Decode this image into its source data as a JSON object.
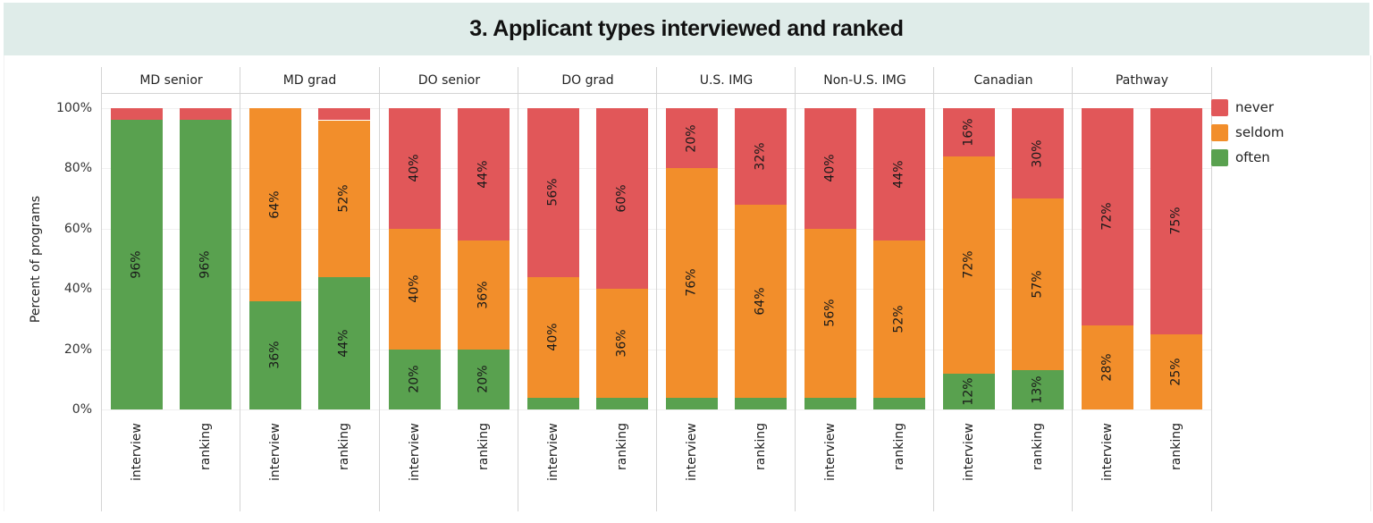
{
  "title": "3. Applicant types interviewed and ranked",
  "y_axis": {
    "label": "Percent of programs",
    "ticks": [
      "100%",
      "80%",
      "60%",
      "40%",
      "20%",
      "0%"
    ]
  },
  "legend": {
    "items": [
      {
        "label": "never",
        "color": "#e15759"
      },
      {
        "label": "seldom",
        "color": "#f28e2b"
      },
      {
        "label": "often",
        "color": "#59a14f"
      }
    ]
  },
  "panels": [
    {
      "name": "MD senior",
      "bars": [
        {
          "x": "interview",
          "often": 96,
          "seldom": 0,
          "never": 4,
          "labels": {
            "often": "96%",
            "seldom": "",
            "never": ""
          }
        },
        {
          "x": "ranking",
          "often": 96,
          "seldom": 0,
          "never": 4,
          "labels": {
            "often": "96%",
            "seldom": "",
            "never": ""
          }
        }
      ]
    },
    {
      "name": "MD grad",
      "bars": [
        {
          "x": "interview",
          "often": 36,
          "seldom": 64,
          "never": 0,
          "labels": {
            "often": "36%",
            "seldom": "64%",
            "never": ""
          }
        },
        {
          "x": "ranking",
          "often": 44,
          "seldom": 52,
          "never": 4,
          "labels": {
            "often": "44%",
            "seldom": "52%",
            "never": ""
          }
        }
      ]
    },
    {
      "name": "DO senior",
      "bars": [
        {
          "x": "interview",
          "often": 20,
          "seldom": 40,
          "never": 40,
          "labels": {
            "often": "20%",
            "seldom": "40%",
            "never": "40%"
          }
        },
        {
          "x": "ranking",
          "often": 20,
          "seldom": 36,
          "never": 44,
          "labels": {
            "often": "20%",
            "seldom": "36%",
            "never": "44%"
          }
        }
      ]
    },
    {
      "name": "DO grad",
      "bars": [
        {
          "x": "interview",
          "often": 4,
          "seldom": 40,
          "never": 56,
          "labels": {
            "often": "",
            "seldom": "40%",
            "never": "56%"
          }
        },
        {
          "x": "ranking",
          "often": 4,
          "seldom": 36,
          "never": 60,
          "labels": {
            "often": "",
            "seldom": "36%",
            "never": "60%"
          }
        }
      ]
    },
    {
      "name": "U.S. IMG",
      "bars": [
        {
          "x": "interview",
          "often": 4,
          "seldom": 76,
          "never": 20,
          "labels": {
            "often": "",
            "seldom": "76%",
            "never": "20%"
          }
        },
        {
          "x": "ranking",
          "often": 4,
          "seldom": 64,
          "never": 32,
          "labels": {
            "often": "",
            "seldom": "64%",
            "never": "32%"
          }
        }
      ]
    },
    {
      "name": "Non-U.S. IMG",
      "bars": [
        {
          "x": "interview",
          "often": 4,
          "seldom": 56,
          "never": 40,
          "labels": {
            "often": "",
            "seldom": "56%",
            "never": "40%"
          }
        },
        {
          "x": "ranking",
          "often": 4,
          "seldom": 52,
          "never": 44,
          "labels": {
            "often": "",
            "seldom": "52%",
            "never": "44%"
          }
        }
      ]
    },
    {
      "name": "Canadian",
      "bars": [
        {
          "x": "interview",
          "often": 12,
          "seldom": 72,
          "never": 16,
          "labels": {
            "often": "12%",
            "seldom": "72%",
            "never": "16%"
          }
        },
        {
          "x": "ranking",
          "often": 13,
          "seldom": 57,
          "never": 30,
          "labels": {
            "often": "13%",
            "seldom": "57%",
            "never": "30%"
          }
        }
      ]
    },
    {
      "name": "Pathway",
      "bars": [
        {
          "x": "interview",
          "often": 0,
          "seldom": 28,
          "never": 72,
          "labels": {
            "often": "",
            "seldom": "28%",
            "never": "72%"
          }
        },
        {
          "x": "ranking",
          "often": 0,
          "seldom": 25,
          "never": 75,
          "labels": {
            "often": "",
            "seldom": "25%",
            "never": "75%"
          }
        }
      ]
    }
  ],
  "chart_data": {
    "type": "bar",
    "stacked": true,
    "normalized": true,
    "title": "3. Applicant types interviewed and ranked",
    "xlabel": "",
    "ylabel": "Percent of programs",
    "ylim": [
      0,
      100
    ],
    "y_ticks": [
      "0%",
      "20%",
      "40%",
      "60%",
      "80%",
      "100%"
    ],
    "grid": true,
    "legend_position": "right",
    "facets": [
      "MD senior",
      "MD grad",
      "DO senior",
      "DO grad",
      "U.S. IMG",
      "Non-U.S. IMG",
      "Canadian",
      "Pathway"
    ],
    "categories": [
      "interview",
      "ranking"
    ],
    "series": [
      {
        "name": "often",
        "color": "#59a14f",
        "values": {
          "MD senior": [
            96,
            96
          ],
          "MD grad": [
            36,
            44
          ],
          "DO senior": [
            20,
            20
          ],
          "DO grad": [
            4,
            4
          ],
          "U.S. IMG": [
            4,
            4
          ],
          "Non-U.S. IMG": [
            4,
            4
          ],
          "Canadian": [
            12,
            13
          ],
          "Pathway": [
            0,
            0
          ]
        }
      },
      {
        "name": "seldom",
        "color": "#f28e2b",
        "values": {
          "MD senior": [
            0,
            0
          ],
          "MD grad": [
            64,
            52
          ],
          "DO senior": [
            40,
            36
          ],
          "DO grad": [
            40,
            36
          ],
          "U.S. IMG": [
            76,
            64
          ],
          "Non-U.S. IMG": [
            56,
            52
          ],
          "Canadian": [
            72,
            57
          ],
          "Pathway": [
            28,
            25
          ]
        }
      },
      {
        "name": "never",
        "color": "#e15759",
        "values": {
          "MD senior": [
            4,
            4
          ],
          "MD grad": [
            0,
            4
          ],
          "DO senior": [
            40,
            44
          ],
          "DO grad": [
            56,
            60
          ],
          "U.S. IMG": [
            20,
            32
          ],
          "Non-U.S. IMG": [
            40,
            44
          ],
          "Canadian": [
            16,
            30
          ],
          "Pathway": [
            72,
            75
          ]
        }
      }
    ]
  }
}
